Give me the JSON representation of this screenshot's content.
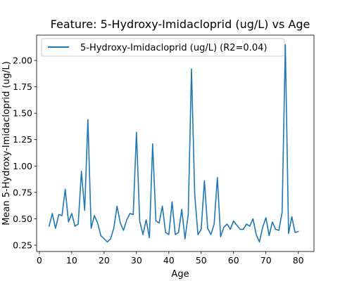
{
  "chart_data": {
    "type": "line",
    "title": "Feature: 5-Hydroxy-Imidacloprid (ug/L) vs Age",
    "xlabel": "Age",
    "ylabel": "Mean 5-Hydroxy-Imidacloprid (ug/L)",
    "xlim": [
      -0.85,
      84.85
    ],
    "ylim": [
      0.19,
      2.24
    ],
    "xticks": [
      0,
      10,
      20,
      30,
      40,
      50,
      60,
      70,
      80
    ],
    "yticks": [
      0.25,
      0.5,
      0.75,
      1.0,
      1.25,
      1.5,
      1.75,
      2.0
    ],
    "ytick_labels": [
      "0.25",
      "0.50",
      "0.75",
      "1.00",
      "1.25",
      "1.50",
      "1.75",
      "2.00"
    ],
    "grid": false,
    "legend_position": "top-left",
    "series": [
      {
        "name": "5-Hydroxy-Imidacloprid (ug/L) (R2=0.04)",
        "color": "#1f77b4",
        "x": [
          3,
          4,
          5,
          6,
          7,
          8,
          9,
          10,
          11,
          12,
          13,
          14,
          15,
          16,
          17,
          18,
          19,
          20,
          21,
          22,
          23,
          24,
          25,
          26,
          27,
          28,
          29,
          30,
          31,
          32,
          33,
          34,
          35,
          36,
          37,
          38,
          39,
          40,
          41,
          42,
          43,
          44,
          45,
          46,
          47,
          48,
          49,
          50,
          51,
          52,
          53,
          54,
          55,
          56,
          57,
          58,
          59,
          60,
          61,
          62,
          63,
          64,
          65,
          66,
          67,
          68,
          69,
          70,
          71,
          72,
          73,
          74,
          75,
          76,
          77,
          78,
          79,
          80
        ],
        "y": [
          0.43,
          0.55,
          0.41,
          0.54,
          0.53,
          0.78,
          0.47,
          0.55,
          0.43,
          0.45,
          0.95,
          0.58,
          1.44,
          0.41,
          0.53,
          0.46,
          0.34,
          0.31,
          0.28,
          0.31,
          0.41,
          0.62,
          0.46,
          0.39,
          0.49,
          0.55,
          0.54,
          1.32,
          0.48,
          0.35,
          0.49,
          0.32,
          1.21,
          0.48,
          0.46,
          0.62,
          0.37,
          0.35,
          0.66,
          0.35,
          0.37,
          0.59,
          0.31,
          0.54,
          1.92,
          0.73,
          0.35,
          0.4,
          0.86,
          0.41,
          0.35,
          0.45,
          0.89,
          0.33,
          0.42,
          0.45,
          0.4,
          0.48,
          0.44,
          0.4,
          0.4,
          0.45,
          0.43,
          0.5,
          0.35,
          0.28,
          0.42,
          0.51,
          0.34,
          0.47,
          0.4,
          0.39,
          0.56,
          2.15,
          0.36,
          0.52,
          0.37,
          0.38
        ]
      }
    ]
  }
}
